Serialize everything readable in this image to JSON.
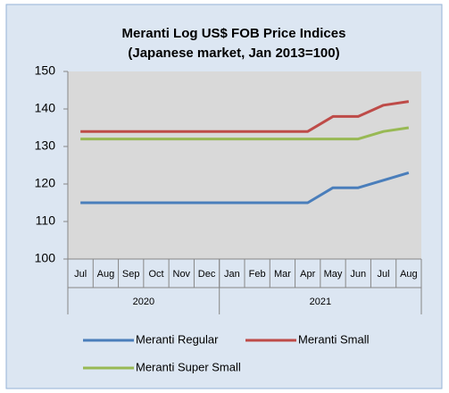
{
  "chart_data": {
    "type": "line",
    "title": "Meranti Log US$ FOB Price Indices",
    "subtitle": "(Japanese market, Jan 2013=100)",
    "categories": [
      "Jul",
      "Aug",
      "Sep",
      "Oct",
      "Nov",
      "Dec",
      "Jan",
      "Feb",
      "Mar",
      "Apr",
      "May",
      "Jun",
      "Jul",
      "Aug"
    ],
    "groups": [
      {
        "label": "2020",
        "span": 6
      },
      {
        "label": "2021",
        "span": 8
      }
    ],
    "series": [
      {
        "name": "Meranti Regular",
        "color": "#4a7ebb",
        "values": [
          115,
          115,
          115,
          115,
          115,
          115,
          115,
          115,
          115,
          115,
          119,
          119,
          121,
          123
        ]
      },
      {
        "name": "Meranti Small",
        "color": "#be4b48",
        "values": [
          134,
          134,
          134,
          134,
          134,
          134,
          134,
          134,
          134,
          134,
          138,
          138,
          141,
          142
        ]
      },
      {
        "name": "Meranti Super Small",
        "color": "#98b954",
        "values": [
          132,
          132,
          132,
          132,
          132,
          132,
          132,
          132,
          132,
          132,
          132,
          132,
          134,
          135
        ]
      }
    ],
    "ylim": [
      100,
      150
    ],
    "yticks": [
      100,
      110,
      120,
      130,
      140,
      150
    ],
    "grid": false
  }
}
